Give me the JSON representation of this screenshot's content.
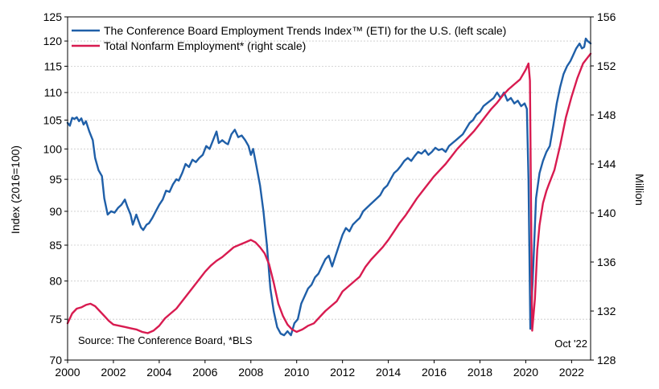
{
  "chart_data": {
    "type": "line",
    "legend": {
      "placement": "top-left",
      "items": [
        {
          "label": "The Conference Board Employment Trends Index™ (ETI) for the U.S. (left scale)",
          "color": "#1f5fa8"
        },
        {
          "label": "Total Nonfarm Employment* (right scale)",
          "color": "#d81b50"
        }
      ]
    },
    "ylabel_left": "Index (2016=100)",
    "ylabel_right": "Million",
    "source": "Source: The Conference Board, *BLS",
    "date_note": "Oct '22",
    "x_range": [
      2000,
      2022.83
    ],
    "x_ticks": [
      "2000",
      "2002",
      "2004",
      "2006",
      "2008",
      "2010",
      "2012",
      "2014",
      "2016",
      "2018",
      "2020",
      "2022"
    ],
    "y_left": {
      "range": [
        70,
        125
      ],
      "scale": "log",
      "ticks": [
        70,
        75,
        80,
        85,
        90,
        95,
        100,
        105,
        110,
        115,
        120,
        125
      ]
    },
    "y_right": {
      "range": [
        128,
        156
      ],
      "ticks": [
        128,
        132,
        136,
        140,
        144,
        148,
        152,
        156
      ]
    },
    "grid": true,
    "series": [
      {
        "name": "The Conference Board Employment Trends Index™ (ETI) for the U.S. (left scale)",
        "axis": "left",
        "color": "#1f5fa8",
        "points": [
          [
            2000.0,
            104.5
          ],
          [
            2000.1,
            104.0
          ],
          [
            2000.2,
            105.4
          ],
          [
            2000.3,
            105.2
          ],
          [
            2000.4,
            105.5
          ],
          [
            2000.5,
            104.8
          ],
          [
            2000.6,
            105.3
          ],
          [
            2000.7,
            104.2
          ],
          [
            2000.8,
            104.8
          ],
          [
            2000.95,
            103.0
          ],
          [
            2001.1,
            101.5
          ],
          [
            2001.2,
            98.5
          ],
          [
            2001.35,
            96.5
          ],
          [
            2001.5,
            95.5
          ],
          [
            2001.6,
            92.0
          ],
          [
            2001.75,
            89.5
          ],
          [
            2001.9,
            90.0
          ],
          [
            2002.05,
            89.8
          ],
          [
            2002.2,
            90.5
          ],
          [
            2002.35,
            91.0
          ],
          [
            2002.5,
            91.8
          ],
          [
            2002.6,
            90.8
          ],
          [
            2002.75,
            89.5
          ],
          [
            2002.85,
            88.0
          ],
          [
            2003.0,
            89.5
          ],
          [
            2003.1,
            88.5
          ],
          [
            2003.2,
            87.6
          ],
          [
            2003.3,
            87.2
          ],
          [
            2003.45,
            88.0
          ],
          [
            2003.55,
            88.2
          ],
          [
            2003.7,
            89.0
          ],
          [
            2003.85,
            90.0
          ],
          [
            2004.0,
            91.0
          ],
          [
            2004.15,
            91.8
          ],
          [
            2004.3,
            93.2
          ],
          [
            2004.45,
            93.0
          ],
          [
            2004.6,
            94.2
          ],
          [
            2004.75,
            95.0
          ],
          [
            2004.85,
            94.8
          ],
          [
            2005.0,
            96.0
          ],
          [
            2005.15,
            97.5
          ],
          [
            2005.3,
            97.0
          ],
          [
            2005.45,
            98.2
          ],
          [
            2005.6,
            97.8
          ],
          [
            2005.75,
            98.5
          ],
          [
            2005.9,
            99.0
          ],
          [
            2006.05,
            100.5
          ],
          [
            2006.2,
            100.0
          ],
          [
            2006.35,
            101.5
          ],
          [
            2006.5,
            103.0
          ],
          [
            2006.6,
            101.0
          ],
          [
            2006.75,
            101.5
          ],
          [
            2006.9,
            101.0
          ],
          [
            2007.0,
            100.8
          ],
          [
            2007.15,
            102.5
          ],
          [
            2007.3,
            103.3
          ],
          [
            2007.45,
            102.0
          ],
          [
            2007.6,
            102.3
          ],
          [
            2007.75,
            101.5
          ],
          [
            2007.9,
            100.5
          ],
          [
            2008.0,
            99.0
          ],
          [
            2008.1,
            100.0
          ],
          [
            2008.25,
            97.0
          ],
          [
            2008.4,
            94.0
          ],
          [
            2008.55,
            90.0
          ],
          [
            2008.7,
            85.0
          ],
          [
            2008.85,
            79.0
          ],
          [
            2009.0,
            76.0
          ],
          [
            2009.15,
            74.0
          ],
          [
            2009.3,
            73.2
          ],
          [
            2009.45,
            73.0
          ],
          [
            2009.6,
            73.5
          ],
          [
            2009.75,
            73.0
          ],
          [
            2009.9,
            74.5
          ],
          [
            2010.05,
            75.0
          ],
          [
            2010.2,
            77.0
          ],
          [
            2010.35,
            78.0
          ],
          [
            2010.5,
            79.0
          ],
          [
            2010.65,
            79.5
          ],
          [
            2010.8,
            80.5
          ],
          [
            2010.95,
            81.0
          ],
          [
            2011.1,
            82.0
          ],
          [
            2011.25,
            83.0
          ],
          [
            2011.4,
            83.5
          ],
          [
            2011.55,
            82.0
          ],
          [
            2011.7,
            83.5
          ],
          [
            2011.85,
            85.0
          ],
          [
            2012.0,
            86.5
          ],
          [
            2012.15,
            87.5
          ],
          [
            2012.3,
            87.0
          ],
          [
            2012.45,
            88.0
          ],
          [
            2012.6,
            88.5
          ],
          [
            2012.75,
            89.0
          ],
          [
            2012.9,
            90.0
          ],
          [
            2013.05,
            90.5
          ],
          [
            2013.2,
            91.0
          ],
          [
            2013.35,
            91.5
          ],
          [
            2013.5,
            92.0
          ],
          [
            2013.65,
            92.5
          ],
          [
            2013.8,
            93.5
          ],
          [
            2013.95,
            94.0
          ],
          [
            2014.1,
            95.0
          ],
          [
            2014.25,
            96.0
          ],
          [
            2014.4,
            96.5
          ],
          [
            2014.55,
            97.2
          ],
          [
            2014.7,
            98.0
          ],
          [
            2014.85,
            98.5
          ],
          [
            2015.0,
            98.0
          ],
          [
            2015.15,
            98.8
          ],
          [
            2015.3,
            99.5
          ],
          [
            2015.45,
            99.2
          ],
          [
            2015.6,
            99.8
          ],
          [
            2015.75,
            99.0
          ],
          [
            2015.9,
            99.5
          ],
          [
            2016.05,
            100.2
          ],
          [
            2016.2,
            99.8
          ],
          [
            2016.35,
            100.0
          ],
          [
            2016.5,
            99.5
          ],
          [
            2016.65,
            100.5
          ],
          [
            2016.8,
            101.0
          ],
          [
            2016.95,
            101.5
          ],
          [
            2017.1,
            102.0
          ],
          [
            2017.25,
            102.5
          ],
          [
            2017.4,
            103.5
          ],
          [
            2017.55,
            104.5
          ],
          [
            2017.7,
            105.0
          ],
          [
            2017.85,
            106.0
          ],
          [
            2018.0,
            106.5
          ],
          [
            2018.15,
            107.5
          ],
          [
            2018.3,
            108.0
          ],
          [
            2018.45,
            108.5
          ],
          [
            2018.6,
            109.0
          ],
          [
            2018.75,
            110.0
          ],
          [
            2018.9,
            109.0
          ],
          [
            2019.05,
            110.0
          ],
          [
            2019.2,
            108.5
          ],
          [
            2019.35,
            109.0
          ],
          [
            2019.5,
            108.0
          ],
          [
            2019.65,
            108.5
          ],
          [
            2019.8,
            107.5
          ],
          [
            2019.95,
            108.0
          ],
          [
            2020.05,
            107.0
          ],
          [
            2020.12,
            95.0
          ],
          [
            2020.2,
            73.8
          ],
          [
            2020.3,
            80.0
          ],
          [
            2020.45,
            92.0
          ],
          [
            2020.6,
            96.0
          ],
          [
            2020.75,
            98.0
          ],
          [
            2020.9,
            99.5
          ],
          [
            2021.05,
            100.5
          ],
          [
            2021.2,
            104.0
          ],
          [
            2021.35,
            108.0
          ],
          [
            2021.5,
            111.0
          ],
          [
            2021.65,
            113.5
          ],
          [
            2021.8,
            115.0
          ],
          [
            2021.95,
            116.0
          ],
          [
            2022.05,
            117.0
          ],
          [
            2022.2,
            118.5
          ],
          [
            2022.35,
            119.5
          ],
          [
            2022.45,
            118.5
          ],
          [
            2022.55,
            118.8
          ],
          [
            2022.62,
            120.5
          ],
          [
            2022.7,
            120.0
          ],
          [
            2022.83,
            119.5
          ]
        ]
      },
      {
        "name": "Total Nonfarm Employment* (right scale)",
        "axis": "right",
        "color": "#d81b50",
        "points": [
          [
            2000.0,
            131.0
          ],
          [
            2000.2,
            131.8
          ],
          [
            2000.4,
            132.2
          ],
          [
            2000.6,
            132.3
          ],
          [
            2000.8,
            132.5
          ],
          [
            2001.0,
            132.6
          ],
          [
            2001.2,
            132.4
          ],
          [
            2001.4,
            132.0
          ],
          [
            2001.6,
            131.6
          ],
          [
            2001.8,
            131.2
          ],
          [
            2002.0,
            130.9
          ],
          [
            2002.25,
            130.8
          ],
          [
            2002.5,
            130.7
          ],
          [
            2002.75,
            130.6
          ],
          [
            2003.0,
            130.5
          ],
          [
            2003.25,
            130.3
          ],
          [
            2003.5,
            130.2
          ],
          [
            2003.75,
            130.4
          ],
          [
            2004.0,
            130.8
          ],
          [
            2004.25,
            131.4
          ],
          [
            2004.5,
            131.8
          ],
          [
            2004.75,
            132.2
          ],
          [
            2005.0,
            132.8
          ],
          [
            2005.25,
            133.4
          ],
          [
            2005.5,
            134.0
          ],
          [
            2005.75,
            134.6
          ],
          [
            2006.0,
            135.2
          ],
          [
            2006.25,
            135.7
          ],
          [
            2006.5,
            136.1
          ],
          [
            2006.75,
            136.4
          ],
          [
            2007.0,
            136.8
          ],
          [
            2007.25,
            137.2
          ],
          [
            2007.5,
            137.4
          ],
          [
            2007.75,
            137.6
          ],
          [
            2008.0,
            137.8
          ],
          [
            2008.2,
            137.6
          ],
          [
            2008.4,
            137.2
          ],
          [
            2008.6,
            136.7
          ],
          [
            2008.8,
            135.8
          ],
          [
            2009.0,
            134.3
          ],
          [
            2009.2,
            132.6
          ],
          [
            2009.4,
            131.6
          ],
          [
            2009.6,
            130.9
          ],
          [
            2009.8,
            130.5
          ],
          [
            2010.0,
            130.3
          ],
          [
            2010.25,
            130.5
          ],
          [
            2010.5,
            130.8
          ],
          [
            2010.75,
            131.0
          ],
          [
            2011.0,
            131.5
          ],
          [
            2011.25,
            132.0
          ],
          [
            2011.5,
            132.4
          ],
          [
            2011.75,
            132.8
          ],
          [
            2012.0,
            133.6
          ],
          [
            2012.25,
            134.0
          ],
          [
            2012.5,
            134.4
          ],
          [
            2012.75,
            134.8
          ],
          [
            2013.0,
            135.6
          ],
          [
            2013.25,
            136.2
          ],
          [
            2013.5,
            136.7
          ],
          [
            2013.75,
            137.2
          ],
          [
            2014.0,
            137.8
          ],
          [
            2014.25,
            138.5
          ],
          [
            2014.5,
            139.2
          ],
          [
            2014.75,
            139.8
          ],
          [
            2015.0,
            140.5
          ],
          [
            2015.25,
            141.2
          ],
          [
            2015.5,
            141.8
          ],
          [
            2015.75,
            142.4
          ],
          [
            2016.0,
            143.0
          ],
          [
            2016.25,
            143.5
          ],
          [
            2016.5,
            144.0
          ],
          [
            2016.75,
            144.6
          ],
          [
            2017.0,
            145.2
          ],
          [
            2017.25,
            145.7
          ],
          [
            2017.5,
            146.2
          ],
          [
            2017.75,
            146.7
          ],
          [
            2018.0,
            147.3
          ],
          [
            2018.25,
            147.9
          ],
          [
            2018.5,
            148.5
          ],
          [
            2018.75,
            149.0
          ],
          [
            2019.0,
            149.6
          ],
          [
            2019.25,
            150.1
          ],
          [
            2019.5,
            150.5
          ],
          [
            2019.75,
            150.9
          ],
          [
            2020.0,
            151.7
          ],
          [
            2020.12,
            152.2
          ],
          [
            2020.18,
            150.8
          ],
          [
            2020.28,
            130.4
          ],
          [
            2020.4,
            133.0
          ],
          [
            2020.5,
            137.0
          ],
          [
            2020.6,
            139.0
          ],
          [
            2020.75,
            140.8
          ],
          [
            2020.9,
            141.8
          ],
          [
            2021.0,
            142.3
          ],
          [
            2021.25,
            143.5
          ],
          [
            2021.5,
            145.5
          ],
          [
            2021.75,
            147.8
          ],
          [
            2022.0,
            149.5
          ],
          [
            2022.25,
            151.0
          ],
          [
            2022.5,
            152.2
          ],
          [
            2022.83,
            153.0
          ]
        ]
      }
    ]
  }
}
